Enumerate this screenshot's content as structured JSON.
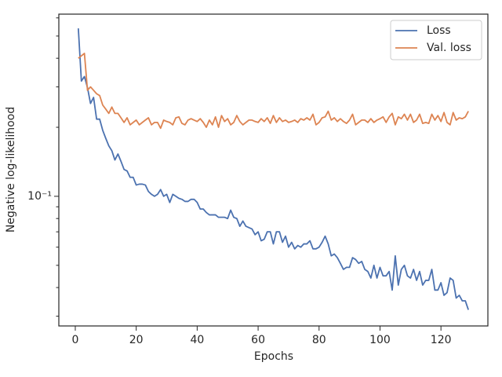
{
  "chart_data": {
    "type": "line",
    "xlabel": "Epochs",
    "ylabel": "Negative log-likelihood",
    "yscale": "log",
    "legend": "upper right",
    "grid": false,
    "xlim": [
      -5.4,
      135.4
    ],
    "xticks": [
      0,
      20,
      40,
      60,
      80,
      100,
      120
    ],
    "ylim": [
      0.0272,
      0.623
    ],
    "yticks": [
      {
        "value": 0.1,
        "label": "10⁻¹"
      }
    ],
    "yminorticks": [
      0.03,
      0.04,
      0.05,
      0.06,
      0.07,
      0.08,
      0.09,
      0.2,
      0.3,
      0.4,
      0.5,
      0.6
    ],
    "x": [
      1,
      2,
      3,
      4,
      5,
      6,
      7,
      8,
      9,
      10,
      11,
      12,
      13,
      14,
      15,
      16,
      17,
      18,
      19,
      20,
      21,
      22,
      23,
      24,
      25,
      26,
      27,
      28,
      29,
      30,
      31,
      32,
      33,
      34,
      35,
      36,
      37,
      38,
      39,
      40,
      41,
      42,
      43,
      44,
      45,
      46,
      47,
      48,
      49,
      50,
      51,
      52,
      53,
      54,
      55,
      56,
      57,
      58,
      59,
      60,
      61,
      62,
      63,
      64,
      65,
      66,
      67,
      68,
      69,
      70,
      71,
      72,
      73,
      74,
      75,
      76,
      77,
      78,
      79,
      80,
      81,
      82,
      83,
      84,
      85,
      86,
      87,
      88,
      89,
      90,
      91,
      92,
      93,
      94,
      95,
      96,
      97,
      98,
      99,
      100,
      101,
      102,
      103,
      104,
      105,
      106,
      107,
      108,
      109,
      110,
      111,
      112,
      113,
      114,
      115,
      116,
      117,
      118,
      119,
      120,
      121,
      122,
      123,
      124,
      125,
      126,
      127,
      128,
      129
    ],
    "series": [
      {
        "name": "Loss",
        "color": "#4c72b0",
        "values": [
          0.54,
          0.318,
          0.333,
          0.298,
          0.254,
          0.27,
          0.217,
          0.217,
          0.194,
          0.179,
          0.166,
          0.158,
          0.144,
          0.153,
          0.142,
          0.131,
          0.129,
          0.121,
          0.121,
          0.112,
          0.113,
          0.113,
          0.112,
          0.105,
          0.102,
          0.1,
          0.102,
          0.107,
          0.1,
          0.102,
          0.094,
          0.102,
          0.1,
          0.098,
          0.097,
          0.095,
          0.095,
          0.097,
          0.097,
          0.094,
          0.088,
          0.088,
          0.085,
          0.083,
          0.083,
          0.083,
          0.081,
          0.081,
          0.081,
          0.08,
          0.087,
          0.081,
          0.08,
          0.074,
          0.078,
          0.074,
          0.073,
          0.072,
          0.068,
          0.07,
          0.064,
          0.065,
          0.07,
          0.07,
          0.062,
          0.07,
          0.07,
          0.063,
          0.067,
          0.06,
          0.063,
          0.059,
          0.061,
          0.06,
          0.062,
          0.062,
          0.064,
          0.059,
          0.059,
          0.06,
          0.063,
          0.067,
          0.062,
          0.055,
          0.056,
          0.054,
          0.051,
          0.048,
          0.049,
          0.049,
          0.054,
          0.053,
          0.051,
          0.052,
          0.048,
          0.047,
          0.044,
          0.05,
          0.044,
          0.049,
          0.045,
          0.045,
          0.047,
          0.039,
          0.055,
          0.041,
          0.048,
          0.05,
          0.045,
          0.044,
          0.048,
          0.043,
          0.047,
          0.041,
          0.043,
          0.043,
          0.048,
          0.039,
          0.039,
          0.042,
          0.037,
          0.038,
          0.044,
          0.043,
          0.036,
          0.037,
          0.035,
          0.035,
          0.032
        ]
      },
      {
        "name": "Val. loss",
        "color": "#dd8452",
        "values": [
          0.4,
          0.41,
          0.42,
          0.29,
          0.3,
          0.29,
          0.28,
          0.275,
          0.25,
          0.24,
          0.23,
          0.245,
          0.23,
          0.23,
          0.22,
          0.21,
          0.22,
          0.205,
          0.21,
          0.215,
          0.205,
          0.21,
          0.215,
          0.22,
          0.205,
          0.21,
          0.21,
          0.198,
          0.215,
          0.212,
          0.21,
          0.205,
          0.22,
          0.222,
          0.208,
          0.205,
          0.215,
          0.218,
          0.215,
          0.212,
          0.218,
          0.21,
          0.2,
          0.215,
          0.205,
          0.222,
          0.2,
          0.225,
          0.212,
          0.218,
          0.205,
          0.21,
          0.225,
          0.212,
          0.205,
          0.21,
          0.215,
          0.215,
          0.212,
          0.21,
          0.218,
          0.212,
          0.22,
          0.208,
          0.225,
          0.21,
          0.22,
          0.212,
          0.215,
          0.21,
          0.212,
          0.215,
          0.21,
          0.218,
          0.215,
          0.22,
          0.215,
          0.228,
          0.205,
          0.21,
          0.22,
          0.222,
          0.235,
          0.215,
          0.22,
          0.212,
          0.218,
          0.212,
          0.208,
          0.215,
          0.228,
          0.205,
          0.21,
          0.215,
          0.215,
          0.21,
          0.218,
          0.21,
          0.215,
          0.218,
          0.222,
          0.21,
          0.222,
          0.23,
          0.205,
          0.222,
          0.218,
          0.228,
          0.215,
          0.228,
          0.21,
          0.215,
          0.228,
          0.208,
          0.21,
          0.208,
          0.228,
          0.215,
          0.225,
          0.212,
          0.232,
          0.21,
          0.205,
          0.232,
          0.215,
          0.22,
          0.218,
          0.222,
          0.235
        ]
      }
    ]
  }
}
